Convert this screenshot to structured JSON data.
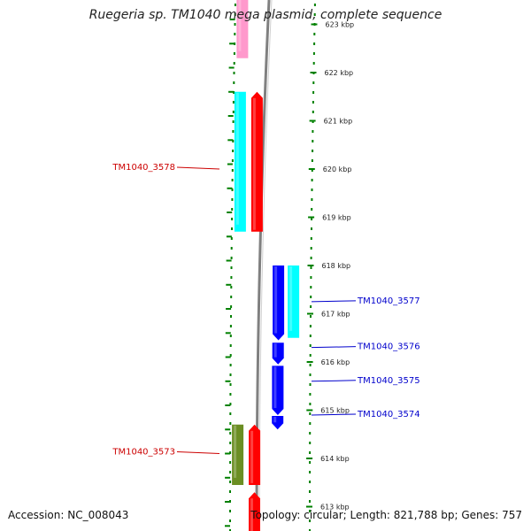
{
  "title": "Ruegeria sp. TM1040 mega plasmid, complete sequence",
  "footer": {
    "accession": "Accession: NC_008043",
    "summary": "Topology: circular; Length: 821,788 bp; Genes: 757"
  },
  "colors": {
    "backbone": "#808080",
    "tick_green": "#008000",
    "label_red": "#cc0000",
    "label_blue": "#0000cc"
  },
  "ticks": [
    {
      "kbp": 623,
      "label": "623 kbp"
    },
    {
      "kbp": 622,
      "label": "622 kbp"
    },
    {
      "kbp": 621,
      "label": "621 kbp"
    },
    {
      "kbp": 620,
      "label": "620 kbp"
    },
    {
      "kbp": 619,
      "label": "619 kbp"
    },
    {
      "kbp": 618,
      "label": "618 kbp"
    },
    {
      "kbp": 617,
      "label": "617 kbp"
    },
    {
      "kbp": 616,
      "label": "616 kbp"
    },
    {
      "kbp": 615,
      "label": "615 kbp"
    },
    {
      "kbp": 614,
      "label": "614 kbp"
    },
    {
      "kbp": 613,
      "label": "613 kbp"
    }
  ],
  "features": [
    {
      "track": "outer-left",
      "color": "#ff99cc",
      "start": 622.3,
      "end": 623.6,
      "arrow": "none"
    },
    {
      "track": "outer-left",
      "color": "#00ffff",
      "start": 618.7,
      "end": 621.6,
      "arrow": "none"
    },
    {
      "track": "inner-left",
      "color": "#ff0000",
      "start": 618.7,
      "end": 621.6,
      "arrow": "up"
    },
    {
      "track": "inner-right",
      "color": "#0000ff",
      "start": 616.45,
      "end": 618.0,
      "arrow": "down"
    },
    {
      "track": "outer-right",
      "color": "#00ffff",
      "start": 616.5,
      "end": 618.0,
      "arrow": "none"
    },
    {
      "track": "inner-right",
      "color": "#0000ff",
      "start": 615.95,
      "end": 616.4,
      "arrow": "down"
    },
    {
      "track": "inner-right",
      "color": "#0000ff",
      "start": 614.9,
      "end": 615.92,
      "arrow": "down"
    },
    {
      "track": "inner-right",
      "color": "#0000ff",
      "start": 614.6,
      "end": 614.88,
      "arrow": "down"
    },
    {
      "track": "outer-left",
      "color": "#6b8e23",
      "start": 613.45,
      "end": 614.7,
      "arrow": "none"
    },
    {
      "track": "inner-left",
      "color": "#ff0000",
      "start": 613.45,
      "end": 614.7,
      "arrow": "up"
    },
    {
      "track": "inner-left",
      "color": "#ff0000",
      "start": 612.0,
      "end": 613.3,
      "arrow": "up"
    }
  ],
  "gene_labels": [
    {
      "text": "TM1040_3578",
      "side": "left",
      "kbp": 620.0,
      "color": "#cc0000"
    },
    {
      "text": "TM1040_3577",
      "side": "right",
      "kbp": 617.25,
      "color": "#0000cc"
    },
    {
      "text": "TM1040_3576",
      "side": "right",
      "kbp": 616.3,
      "color": "#0000cc"
    },
    {
      "text": "TM1040_3575",
      "side": "right",
      "kbp": 615.6,
      "color": "#0000cc"
    },
    {
      "text": "TM1040_3574",
      "side": "right",
      "kbp": 614.9,
      "color": "#0000cc"
    },
    {
      "text": "TM1040_3573",
      "side": "left",
      "kbp": 614.1,
      "color": "#cc0000"
    }
  ]
}
